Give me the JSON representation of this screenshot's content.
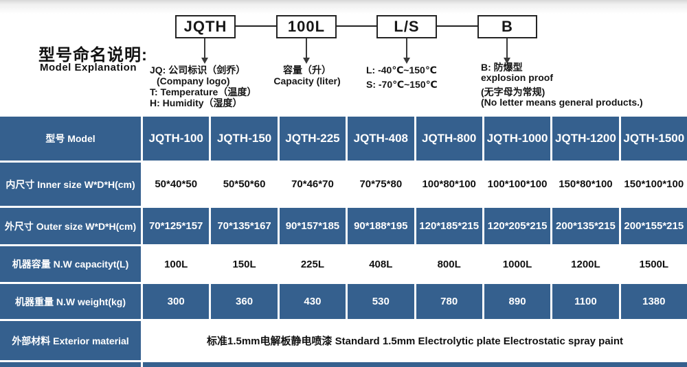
{
  "diagram": {
    "title_zh": "型号命名说明:",
    "title_en": "Model Explanation",
    "boxes": [
      {
        "label": "JQTH"
      },
      {
        "label": "100L"
      },
      {
        "label": "L/S"
      },
      {
        "label": "B"
      }
    ],
    "ann_jqth": [
      "JQ: 公司标识（剑乔）",
      "(Company logo)",
      "T: Temperature（温度）",
      "H: Humidity（湿度）"
    ],
    "ann_capacity": [
      "容量（升）",
      "Capacity (liter)"
    ],
    "ann_ls": [
      "L: -40℃~150℃",
      "S: -70℃~150℃"
    ],
    "ann_b": [
      "B: 防爆型",
      "explosion proof",
      "(无字母为常规)",
      "(No letter means general products.)"
    ]
  },
  "table": {
    "header": {
      "label": "型号 Model",
      "models": [
        "JQTH-100",
        "JQTH-150",
        "JQTH-225",
        "JQTH-408",
        "JQTH-800",
        "JQTH-1000",
        "JQTH-1200",
        "JQTH-1500"
      ]
    },
    "rows": [
      {
        "label": "内尺寸 Inner size W*D*H(cm)",
        "style": "white",
        "values": [
          "50*40*50",
          "50*50*60",
          "70*46*70",
          "70*75*80",
          "100*80*100",
          "100*100*100",
          "150*80*100",
          "150*100*100"
        ]
      },
      {
        "label": "外尺寸 Outer size W*D*H(cm)",
        "style": "blue",
        "values": [
          "70*125*157",
          "70*135*167",
          "90*157*185",
          "90*188*195",
          "120*185*215",
          "120*205*215",
          "200*135*215",
          "200*155*215"
        ]
      },
      {
        "label": "机器容量 N.W capacityt(L)",
        "style": "white",
        "values": [
          "100L",
          "150L",
          "225L",
          "408L",
          "800L",
          "1000L",
          "1200L",
          "1500L"
        ]
      },
      {
        "label": "机器重量 N.W weight(kg)",
        "style": "blue",
        "values": [
          "300",
          "360",
          "430",
          "530",
          "780",
          "890",
          "1100",
          "1380"
        ]
      },
      {
        "label": "外部材料 Exterior material",
        "style": "white",
        "span_value": "标准1.5mm电解板静电喷漆  Standard 1.5mm Electrolytic plate Electrostatic spray paint"
      }
    ]
  },
  "colors": {
    "cell_blue": "#35608e",
    "text_dark": "#111111",
    "diagram_line": "#3a3a3a"
  }
}
